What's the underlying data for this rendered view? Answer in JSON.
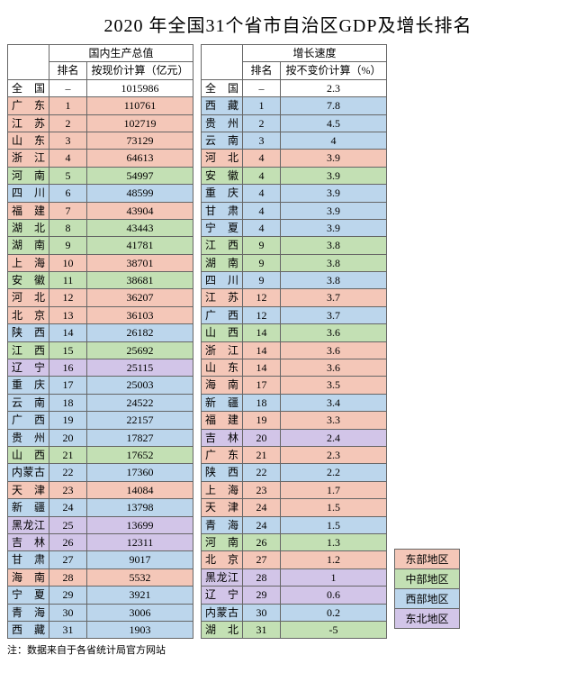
{
  "title": "2020 年全国31个省市自治区GDP及增长排名",
  "headers": {
    "gdp_group": "国内生产总值",
    "growth_group": "增长速度",
    "rank": "排名",
    "gdp_val": "按现价计算（亿元）",
    "growth_val": "按不变价计算（%）"
  },
  "national_label": "全国",
  "national_gdp": "1015986",
  "national_growth": "2.3",
  "colors": {
    "east": "#f4c7b8",
    "central": "#c3e0b4",
    "west": "#bcd6ec",
    "northeast": "#d2c5e8",
    "national": "#ffffff",
    "header": "#f2f2f2"
  },
  "region_names": {
    "east": "东部地区",
    "central": "中部地区",
    "west": "西部地区",
    "northeast": "东北地区"
  },
  "gdp_rows": [
    {
      "prov": "广东",
      "rank": "1",
      "val": "110761",
      "reg": "east"
    },
    {
      "prov": "江苏",
      "rank": "2",
      "val": "102719",
      "reg": "east"
    },
    {
      "prov": "山东",
      "rank": "3",
      "val": "73129",
      "reg": "east"
    },
    {
      "prov": "浙江",
      "rank": "4",
      "val": "64613",
      "reg": "east"
    },
    {
      "prov": "河南",
      "rank": "5",
      "val": "54997",
      "reg": "central"
    },
    {
      "prov": "四川",
      "rank": "6",
      "val": "48599",
      "reg": "west"
    },
    {
      "prov": "福建",
      "rank": "7",
      "val": "43904",
      "reg": "east"
    },
    {
      "prov": "湖北",
      "rank": "8",
      "val": "43443",
      "reg": "central"
    },
    {
      "prov": "湖南",
      "rank": "9",
      "val": "41781",
      "reg": "central"
    },
    {
      "prov": "上海",
      "rank": "10",
      "val": "38701",
      "reg": "east"
    },
    {
      "prov": "安徽",
      "rank": "11",
      "val": "38681",
      "reg": "central"
    },
    {
      "prov": "河北",
      "rank": "12",
      "val": "36207",
      "reg": "east"
    },
    {
      "prov": "北京",
      "rank": "13",
      "val": "36103",
      "reg": "east"
    },
    {
      "prov": "陕西",
      "rank": "14",
      "val": "26182",
      "reg": "west"
    },
    {
      "prov": "江西",
      "rank": "15",
      "val": "25692",
      "reg": "central"
    },
    {
      "prov": "辽宁",
      "rank": "16",
      "val": "25115",
      "reg": "northeast"
    },
    {
      "prov": "重庆",
      "rank": "17",
      "val": "25003",
      "reg": "west"
    },
    {
      "prov": "云南",
      "rank": "18",
      "val": "24522",
      "reg": "west"
    },
    {
      "prov": "广西",
      "rank": "19",
      "val": "22157",
      "reg": "west"
    },
    {
      "prov": "贵州",
      "rank": "20",
      "val": "17827",
      "reg": "west"
    },
    {
      "prov": "山西",
      "rank": "21",
      "val": "17652",
      "reg": "central"
    },
    {
      "prov": "内蒙古",
      "rank": "22",
      "val": "17360",
      "reg": "west"
    },
    {
      "prov": "天津",
      "rank": "23",
      "val": "14084",
      "reg": "east"
    },
    {
      "prov": "新疆",
      "rank": "24",
      "val": "13798",
      "reg": "west"
    },
    {
      "prov": "黑龙江",
      "rank": "25",
      "val": "13699",
      "reg": "northeast"
    },
    {
      "prov": "吉林",
      "rank": "26",
      "val": "12311",
      "reg": "northeast"
    },
    {
      "prov": "甘肃",
      "rank": "27",
      "val": "9017",
      "reg": "west"
    },
    {
      "prov": "海南",
      "rank": "28",
      "val": "5532",
      "reg": "east"
    },
    {
      "prov": "宁夏",
      "rank": "29",
      "val": "3921",
      "reg": "west"
    },
    {
      "prov": "青海",
      "rank": "30",
      "val": "3006",
      "reg": "west"
    },
    {
      "prov": "西藏",
      "rank": "31",
      "val": "1903",
      "reg": "west"
    }
  ],
  "growth_rows": [
    {
      "prov": "西藏",
      "rank": "1",
      "val": "7.8",
      "reg": "west"
    },
    {
      "prov": "贵州",
      "rank": "2",
      "val": "4.5",
      "reg": "west"
    },
    {
      "prov": "云南",
      "rank": "3",
      "val": "4",
      "reg": "west"
    },
    {
      "prov": "河北",
      "rank": "4",
      "val": "3.9",
      "reg": "east"
    },
    {
      "prov": "安徽",
      "rank": "4",
      "val": "3.9",
      "reg": "central"
    },
    {
      "prov": "重庆",
      "rank": "4",
      "val": "3.9",
      "reg": "west"
    },
    {
      "prov": "甘肃",
      "rank": "4",
      "val": "3.9",
      "reg": "west"
    },
    {
      "prov": "宁夏",
      "rank": "4",
      "val": "3.9",
      "reg": "west"
    },
    {
      "prov": "江西",
      "rank": "9",
      "val": "3.8",
      "reg": "central"
    },
    {
      "prov": "湖南",
      "rank": "9",
      "val": "3.8",
      "reg": "central"
    },
    {
      "prov": "四川",
      "rank": "9",
      "val": "3.8",
      "reg": "west"
    },
    {
      "prov": "江苏",
      "rank": "12",
      "val": "3.7",
      "reg": "east"
    },
    {
      "prov": "广西",
      "rank": "12",
      "val": "3.7",
      "reg": "west"
    },
    {
      "prov": "山西",
      "rank": "14",
      "val": "3.6",
      "reg": "central"
    },
    {
      "prov": "浙江",
      "rank": "14",
      "val": "3.6",
      "reg": "east"
    },
    {
      "prov": "山东",
      "rank": "14",
      "val": "3.6",
      "reg": "east"
    },
    {
      "prov": "海南",
      "rank": "17",
      "val": "3.5",
      "reg": "east"
    },
    {
      "prov": "新疆",
      "rank": "18",
      "val": "3.4",
      "reg": "west"
    },
    {
      "prov": "福建",
      "rank": "19",
      "val": "3.3",
      "reg": "east"
    },
    {
      "prov": "吉林",
      "rank": "20",
      "val": "2.4",
      "reg": "northeast"
    },
    {
      "prov": "广东",
      "rank": "21",
      "val": "2.3",
      "reg": "east"
    },
    {
      "prov": "陕西",
      "rank": "22",
      "val": "2.2",
      "reg": "west"
    },
    {
      "prov": "上海",
      "rank": "23",
      "val": "1.7",
      "reg": "east"
    },
    {
      "prov": "天津",
      "rank": "24",
      "val": "1.5",
      "reg": "east"
    },
    {
      "prov": "青海",
      "rank": "24",
      "val": "1.5",
      "reg": "west"
    },
    {
      "prov": "河南",
      "rank": "26",
      "val": "1.3",
      "reg": "central"
    },
    {
      "prov": "北京",
      "rank": "27",
      "val": "1.2",
      "reg": "east"
    },
    {
      "prov": "黑龙江",
      "rank": "28",
      "val": "1",
      "reg": "northeast"
    },
    {
      "prov": "辽宁",
      "rank": "29",
      "val": "0.6",
      "reg": "northeast"
    },
    {
      "prov": "内蒙古",
      "rank": "30",
      "val": "0.2",
      "reg": "west"
    },
    {
      "prov": "湖北",
      "rank": "31",
      "val": "-5",
      "reg": "central"
    }
  ],
  "footnote": "注：数据来自于各省统计局官方网站"
}
